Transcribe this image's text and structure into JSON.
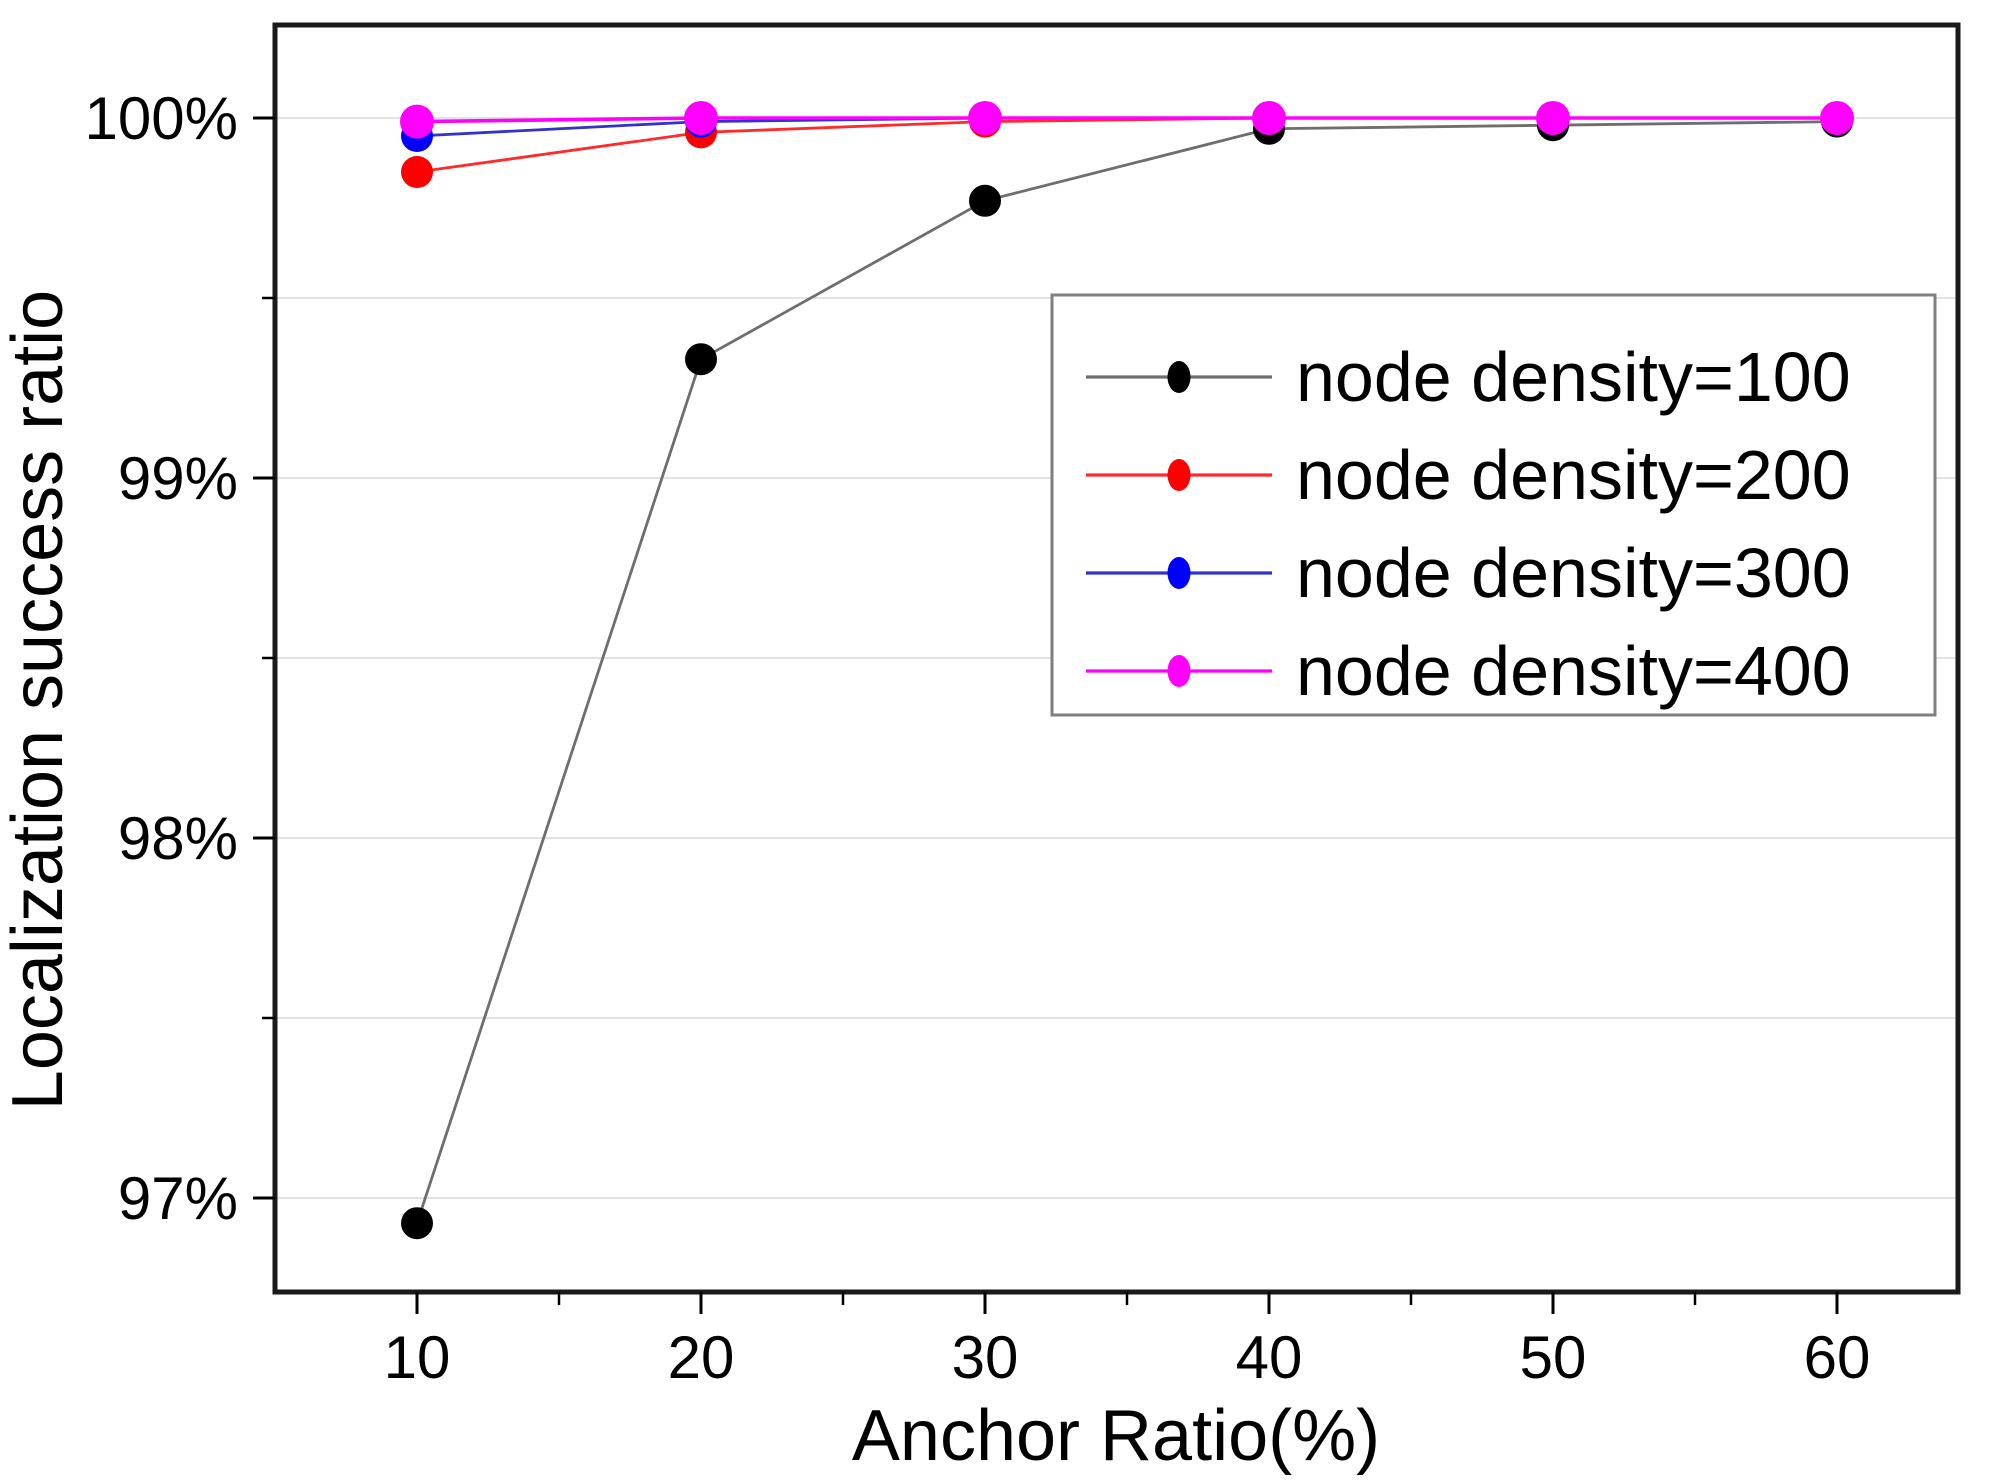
{
  "chart_data": {
    "type": "line",
    "title": "",
    "xlabel": "Anchor Ratio(%)",
    "ylabel": "Localization success ratio",
    "x": [
      10,
      20,
      30,
      40,
      50,
      60
    ],
    "x_tick_labels": [
      "10",
      "20",
      "30",
      "40",
      "50",
      "60"
    ],
    "x_minor_ticks": [
      15,
      25,
      35,
      45,
      55
    ],
    "y_tick_values": [
      97,
      98,
      99,
      100
    ],
    "y_tick_labels": [
      "97%",
      "98%",
      "99%",
      "100%"
    ],
    "y_minor_ticks": [
      97.5,
      98.5,
      99.5
    ],
    "xlim": [
      5,
      64.3
    ],
    "ylim": [
      96.74,
      100.27
    ],
    "grid": "horizontal-major-and-minor",
    "legend_position": "upper-right-inside",
    "series": [
      {
        "name": "node density=100",
        "marker_color": "#000000",
        "line_color": "#6e6e6e",
        "values": [
          96.93,
          99.33,
          99.77,
          99.97,
          99.98,
          99.99
        ]
      },
      {
        "name": "node density=200",
        "marker_color": "#ff0000",
        "line_color": "#ff2a2a",
        "values": [
          99.85,
          99.96,
          99.99,
          100,
          100,
          100
        ]
      },
      {
        "name": "node density=300",
        "marker_color": "#0000ff",
        "line_color": "#3333cc",
        "values": [
          99.95,
          99.99,
          100,
          100,
          100,
          100
        ]
      },
      {
        "name": "node density=400",
        "marker_color": "#ff00ff",
        "line_color": "#ff00ff",
        "values": [
          99.99,
          100,
          100,
          100,
          100,
          100
        ]
      }
    ]
  }
}
